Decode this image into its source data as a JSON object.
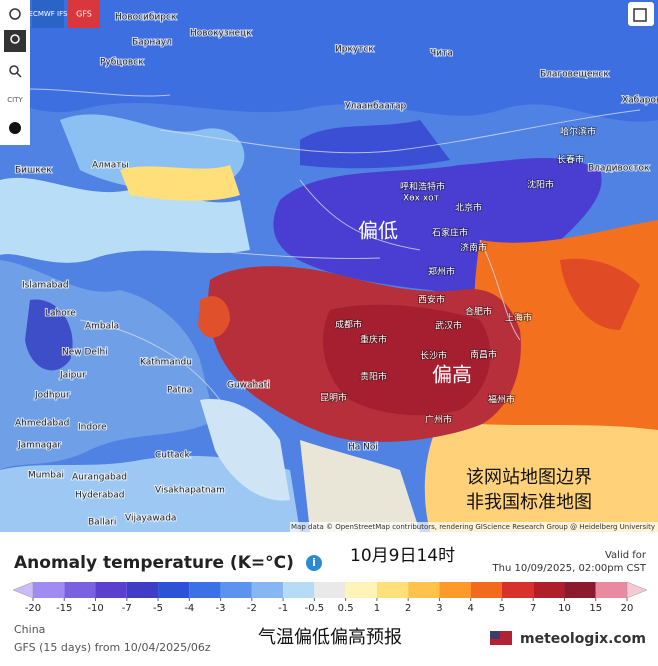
{
  "toolbar": {
    "models": [
      "ECMWF IFS",
      "GFS"
    ],
    "city_button": "CITY"
  },
  "map": {
    "low_label": "偏低",
    "high_label": "偏高",
    "note_lines": [
      "该网站地图边界",
      "非我国标准地图"
    ],
    "attribution": "Map data © OpenStreetMap contributors, rendering GIScience Research Group @ Heidelberg University",
    "cities": [
      "Новосибирск",
      "Барнаул",
      "Новокузнецк",
      "Рубцовск",
      "Иркутск",
      "Чита",
      "Благовещенск",
      "Хабаровск",
      "Улаанбаатар",
      "Бишкек",
      "Алматы",
      "哈尔滨市",
      "长春市",
      "沈阳市",
      "Владивосток",
      "呼和浩特市",
      "Хөх хот",
      "北京市",
      "石家庄市",
      "济南市",
      "郑州市",
      "Islamabad",
      "Lahore",
      "Ambala",
      "New Delhi",
      "Jaipur",
      "Kathmandu",
      "Jodhpur",
      "Patna",
      "Ahmedabad",
      "Indore",
      "Guwahati",
      "成都市",
      "重庆市",
      "西安市",
      "武汉市",
      "合肥市",
      "上海市",
      "长沙市",
      "南昌市",
      "贵阳市",
      "昆明市",
      "福州市",
      "广州市",
      "Ha Noi",
      "Mumbai",
      "Aurangabad",
      "Hyderabad",
      "Visakhapatnam",
      "Cuttack",
      "Jamnagar",
      "Vijayawada",
      "Ballari"
    ]
  },
  "legend": {
    "title": "Anomaly temperature (K=°C)",
    "time_label": "10月9日14时",
    "valid_caption": "Valid for",
    "valid_time": "Thu 10/09/2025, 02:00pm CST",
    "ticks": [
      -20,
      -15,
      -10,
      -7,
      -5,
      -4,
      -3,
      -2,
      -1,
      -0.5,
      0.5,
      1,
      2,
      3,
      4,
      5,
      7,
      10,
      15,
      20
    ],
    "colors": [
      "#cbbcf6",
      "#a08cf0",
      "#7b60e0",
      "#5b40d0",
      "#3f3cc6",
      "#2c52d8",
      "#3b70e6",
      "#5b93ee",
      "#86b7f2",
      "#b6dbf6",
      "#e9e9e9",
      "#fff4b8",
      "#ffe07a",
      "#ffc24a",
      "#ff9a2a",
      "#f26a1e",
      "#d8302a",
      "#b01e2a",
      "#8c1a2e",
      "#e88aa0",
      "#f6c8d4"
    ]
  },
  "footer": {
    "region": "China",
    "model_run": "GFS (15 days) from 10/04/2025/06z",
    "caption": "气温偏低偏高预报",
    "brand": "meteologix.com"
  }
}
